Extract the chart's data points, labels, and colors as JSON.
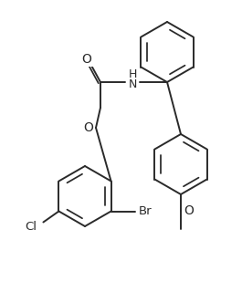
{
  "background_color": "#ffffff",
  "line_color": "#2a2a2a",
  "line_width": 1.4,
  "figsize": [
    2.65,
    3.2
  ],
  "dpi": 100,
  "xlim": [
    0,
    265
  ],
  "ylim": [
    0,
    320
  ]
}
